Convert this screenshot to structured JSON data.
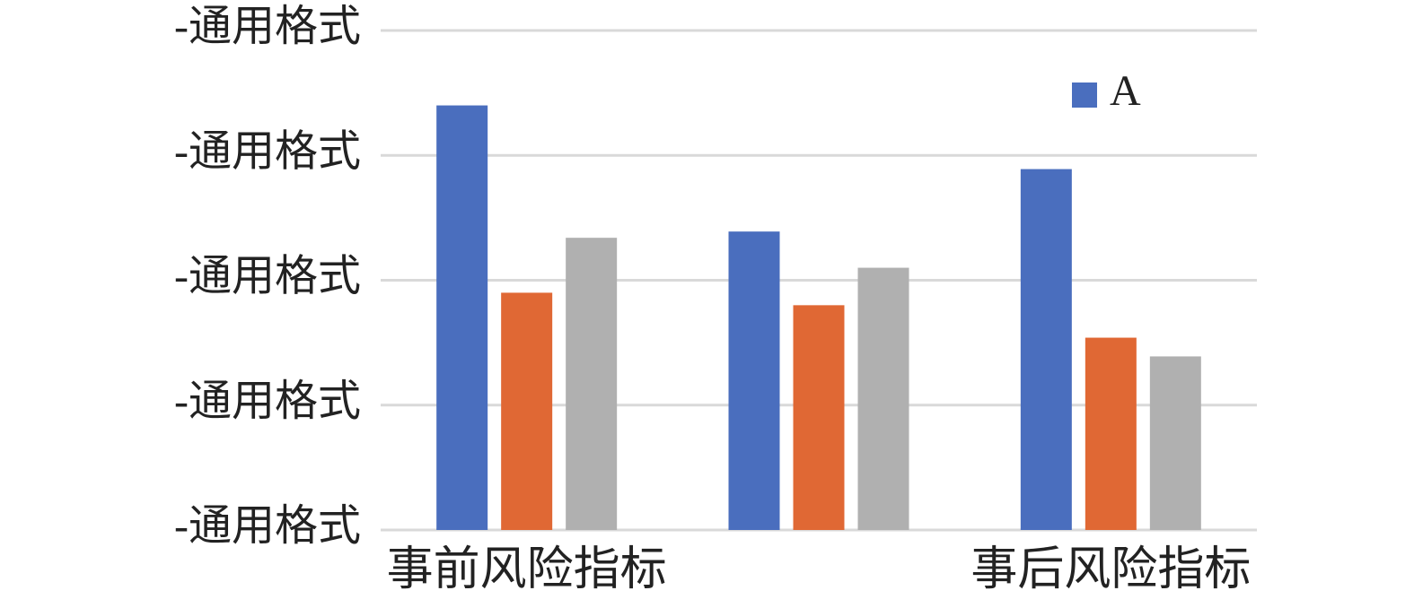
{
  "chart_data": {
    "type": "bar",
    "categories": [
      "事前风险指标",
      null,
      "事后风险指标"
    ],
    "series": [
      {
        "name": "A",
        "color": "#4a6ebe",
        "values": [
          3.4,
          2.39,
          2.89
        ]
      },
      {
        "color": "#e06834",
        "values": [
          1.9,
          1.8,
          1.54
        ]
      },
      {
        "color": "#b0b0b0",
        "values": [
          2.34,
          2.1,
          1.39
        ]
      }
    ],
    "ylim": [
      0,
      4
    ],
    "yticks": [
      {
        "value": 0,
        "label": "-通用格式"
      },
      {
        "value": 1,
        "label": "-通用格式"
      },
      {
        "value": 2,
        "label": "-通用格式"
      },
      {
        "value": 3,
        "label": "-通用格式"
      },
      {
        "value": 4,
        "label": "-通用格式"
      }
    ],
    "grid": true,
    "legend": "top-right"
  }
}
